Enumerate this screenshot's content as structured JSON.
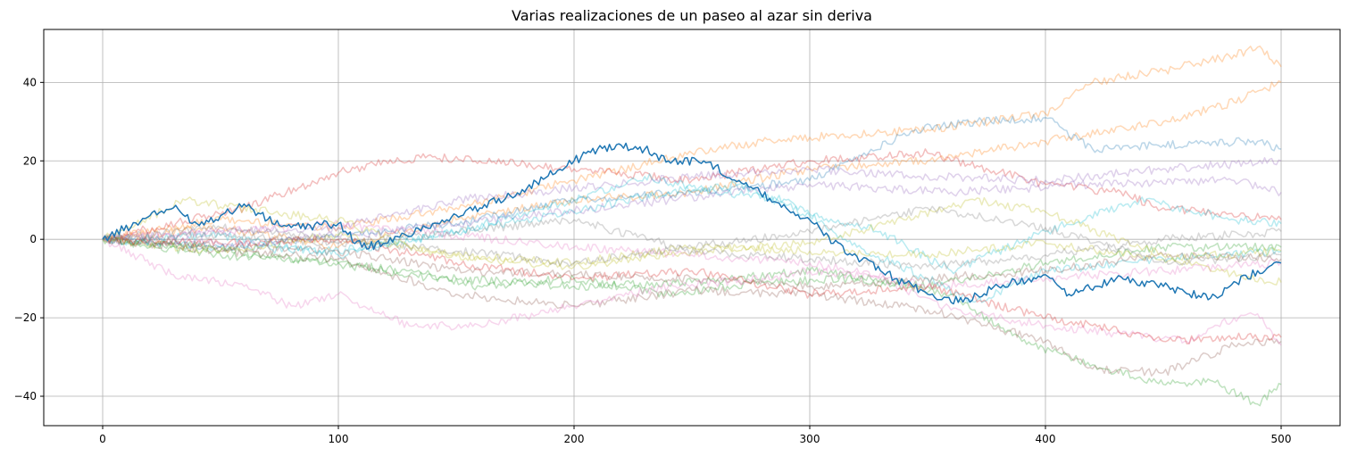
{
  "chart_data": {
    "type": "line",
    "title": "Varias realizaciones de un paseo al azar sin deriva",
    "xlabel": "",
    "ylabel": "",
    "xlim": [
      -25,
      525
    ],
    "ylim": [
      -47.5,
      53.5
    ],
    "xticks": [
      0,
      100,
      200,
      300,
      400,
      500
    ],
    "yticks": [
      -40,
      -20,
      0,
      20,
      40
    ],
    "grid": true,
    "legend": "none",
    "highlight_color": "#1f77b4",
    "background_series_alpha": 0.3,
    "series": [
      {
        "color": "#1f77b4",
        "alpha": 1.0,
        "x": [
          0,
          20,
          30,
          40,
          50,
          60,
          70,
          80,
          100,
          110,
          120,
          140,
          160,
          180,
          200,
          210,
          220,
          230,
          240,
          255,
          270,
          290,
          300,
          310,
          330,
          350,
          365,
          380,
          400,
          410,
          430,
          450,
          470,
          490,
          500
        ],
        "values": [
          0,
          6,
          8,
          4,
          6,
          9,
          5,
          3,
          4,
          -2,
          -1,
          4,
          8,
          13,
          20,
          23,
          24,
          23,
          20,
          20,
          15,
          8,
          5,
          -1,
          -8,
          -14,
          -16,
          -12,
          -9,
          -14,
          -10,
          -12,
          -15,
          -8,
          -6
        ]
      },
      {
        "color": "#ff7f0e",
        "alpha": 0.3,
        "x": [
          0,
          50,
          100,
          150,
          200,
          250,
          280,
          300,
          350,
          400,
          420,
          450,
          480,
          490,
          500
        ],
        "values": [
          0,
          5,
          3,
          8,
          15,
          22,
          25,
          26,
          28,
          32,
          40,
          43,
          47,
          49,
          44
        ]
      },
      {
        "color": "#ff7f0e",
        "alpha": 0.3,
        "x": [
          0,
          50,
          100,
          150,
          200,
          250,
          300,
          350,
          400,
          450,
          480,
          500
        ],
        "values": [
          0,
          3,
          -2,
          5,
          10,
          12,
          18,
          20,
          25,
          30,
          35,
          40
        ]
      },
      {
        "color": "#1f77b4",
        "alpha": 0.3,
        "x": [
          0,
          50,
          100,
          150,
          200,
          250,
          300,
          345,
          370,
          400,
          420,
          450,
          490,
          500
        ],
        "values": [
          0,
          -2,
          1,
          4,
          10,
          12,
          15,
          28,
          30,
          31,
          23,
          24,
          25,
          23
        ]
      },
      {
        "color": "#d62728",
        "alpha": 0.3,
        "x": [
          0,
          60,
          100,
          120,
          140,
          160,
          200,
          250,
          300,
          350,
          400,
          430,
          450,
          500
        ],
        "values": [
          0,
          8,
          17,
          20,
          21,
          20,
          18,
          15,
          20,
          22,
          14,
          12,
          8,
          5
        ]
      },
      {
        "color": "#9467bd",
        "alpha": 0.3,
        "x": [
          0,
          50,
          100,
          150,
          200,
          250,
          300,
          350,
          400,
          450,
          500
        ],
        "values": [
          0,
          2,
          3,
          10,
          13,
          16,
          18,
          16,
          15,
          18,
          20
        ]
      },
      {
        "color": "#9467bd",
        "alpha": 0.3,
        "x": [
          0,
          60,
          120,
          180,
          240,
          300,
          360,
          420,
          480,
          500
        ],
        "values": [
          0,
          -1,
          2,
          6,
          10,
          14,
          12,
          14,
          15,
          12
        ]
      },
      {
        "color": "#17becf",
        "alpha": 0.3,
        "x": [
          0,
          50,
          100,
          150,
          200,
          240,
          270,
          300,
          330,
          360,
          400,
          440,
          480,
          500
        ],
        "values": [
          0,
          1,
          -4,
          2,
          7,
          12,
          14,
          6,
          2,
          -8,
          2,
          10,
          5,
          4
        ]
      },
      {
        "color": "#17becf",
        "alpha": 0.3,
        "x": [
          0,
          50,
          100,
          150,
          200,
          230,
          260,
          290,
          320,
          350,
          370,
          400,
          450,
          500
        ],
        "values": [
          0,
          -2,
          -3,
          2,
          10,
          16,
          12,
          10,
          -2,
          -10,
          -16,
          -8,
          -5,
          -3
        ]
      },
      {
        "color": "#2ca02c",
        "alpha": 0.3,
        "x": [
          0,
          40,
          80,
          120,
          160,
          200,
          240,
          280,
          320,
          360,
          390,
          420,
          450,
          470,
          490,
          500
        ],
        "values": [
          0,
          -2,
          -5,
          -8,
          -12,
          -10,
          -14,
          -11,
          -10,
          -14,
          -26,
          -32,
          -37,
          -36,
          -42,
          -37
        ]
      },
      {
        "color": "#2ca02c",
        "alpha": 0.3,
        "x": [
          0,
          50,
          100,
          150,
          200,
          250,
          300,
          350,
          400,
          450,
          500
        ],
        "values": [
          0,
          -4,
          -6,
          -10,
          -12,
          -11,
          -8,
          -12,
          -6,
          -2,
          -2
        ]
      },
      {
        "color": "#8c564b",
        "alpha": 0.3,
        "x": [
          0,
          50,
          100,
          150,
          200,
          250,
          300,
          350,
          400,
          420,
          450,
          480,
          500
        ],
        "values": [
          0,
          -3,
          -5,
          -14,
          -17,
          -13,
          -14,
          -18,
          -26,
          -33,
          -34,
          -27,
          -26
        ]
      },
      {
        "color": "#8c564b",
        "alpha": 0.3,
        "x": [
          0,
          50,
          100,
          150,
          200,
          250,
          300,
          350,
          400,
          450,
          500
        ],
        "values": [
          0,
          -2,
          -3,
          -8,
          -9,
          -10,
          -12,
          -10,
          -8,
          -4,
          -5
        ]
      },
      {
        "color": "#e377c2",
        "alpha": 0.3,
        "x": [
          0,
          30,
          60,
          80,
          100,
          130,
          160,
          200,
          240,
          280,
          300,
          330,
          360,
          400,
          430,
          460,
          480,
          490,
          500
        ],
        "values": [
          0,
          -9,
          -12,
          -17,
          -14,
          -22,
          -22,
          -17,
          -12,
          -10,
          -8,
          -10,
          -18,
          -22,
          -24,
          -26,
          -20,
          -19,
          -27
        ]
      },
      {
        "color": "#e377c2",
        "alpha": 0.3,
        "x": [
          0,
          50,
          100,
          150,
          200,
          250,
          300,
          350,
          400,
          450,
          500
        ],
        "values": [
          0,
          2,
          4,
          1,
          -2,
          -4,
          -6,
          -12,
          -10,
          -8,
          -6
        ]
      },
      {
        "color": "#bcbd22",
        "alpha": 0.3,
        "x": [
          0,
          35,
          70,
          100,
          130,
          160,
          200,
          250,
          300,
          340,
          370,
          400,
          440,
          470,
          500
        ],
        "values": [
          0,
          10,
          7,
          5,
          -2,
          -5,
          -7,
          -3,
          -1,
          5,
          10,
          7,
          -2,
          -8,
          -11
        ]
      },
      {
        "color": "#bcbd22",
        "alpha": 0.3,
        "x": [
          0,
          50,
          100,
          150,
          200,
          250,
          300,
          350,
          400,
          450,
          500
        ],
        "values": [
          0,
          -3,
          1,
          -4,
          -6,
          -2,
          -3,
          -4,
          -1,
          -5,
          -3
        ]
      },
      {
        "color": "#7f7f7f",
        "alpha": 0.3,
        "x": [
          0,
          50,
          100,
          150,
          200,
          250,
          300,
          350,
          400,
          450,
          500
        ],
        "values": [
          0,
          3,
          0,
          -3,
          -6,
          -2,
          2,
          8,
          3,
          -6,
          -4
        ]
      },
      {
        "color": "#7f7f7f",
        "alpha": 0.3,
        "x": [
          0,
          50,
          100,
          150,
          200,
          250,
          300,
          350,
          400,
          450,
          500
        ],
        "values": [
          0,
          1,
          -1,
          2,
          5,
          -3,
          -5,
          -7,
          -4,
          0,
          2
        ]
      },
      {
        "color": "#d62728",
        "alpha": 0.3,
        "x": [
          0,
          50,
          100,
          150,
          200,
          250,
          300,
          350,
          400,
          420,
          450,
          480,
          500
        ],
        "values": [
          0,
          -1,
          0,
          -6,
          -10,
          -8,
          -14,
          -12,
          -20,
          -22,
          -26,
          -25,
          -25
        ]
      }
    ]
  }
}
